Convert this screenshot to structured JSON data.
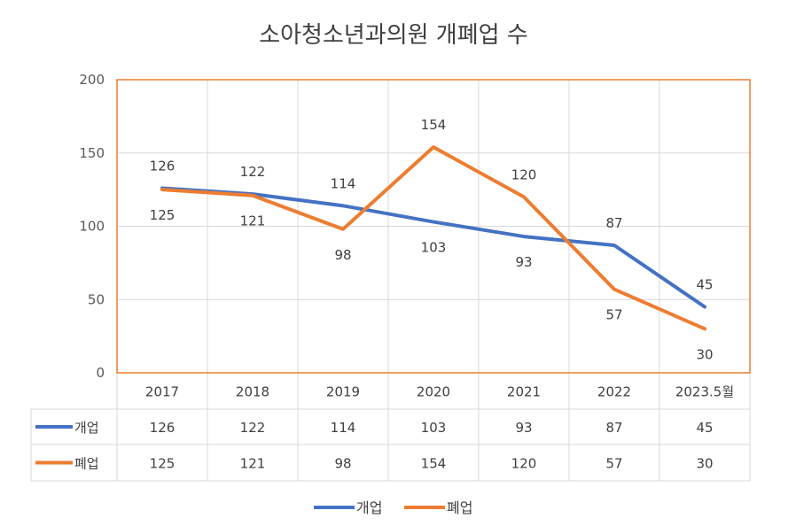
{
  "chart_data": {
    "type": "line",
    "title": "소아청소년과의원 개폐업 수",
    "categories": [
      "2017",
      "2018",
      "2019",
      "2020",
      "2021",
      "2022",
      "2023.5월"
    ],
    "ylim": [
      0,
      200
    ],
    "yticks": [
      0,
      50,
      100,
      150,
      200
    ],
    "grid": true,
    "legend_position": "bottom",
    "data_table": true,
    "series": [
      {
        "name": "개업",
        "color": "#4472C4",
        "values": [
          126,
          122,
          114,
          103,
          93,
          87,
          45
        ]
      },
      {
        "name": "폐업",
        "color": "#ED7D31",
        "values": [
          125,
          121,
          98,
          154,
          120,
          57,
          30
        ]
      }
    ],
    "plot_border_color": "#ED7D31",
    "grid_color": "#D9D9D9"
  }
}
